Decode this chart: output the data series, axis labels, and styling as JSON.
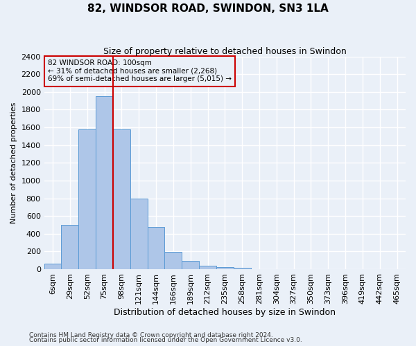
{
  "title": "82, WINDSOR ROAD, SWINDON, SN3 1LA",
  "subtitle": "Size of property relative to detached houses in Swindon",
  "xlabel": "Distribution of detached houses by size in Swindon",
  "ylabel": "Number of detached properties",
  "categories": [
    "6sqm",
    "29sqm",
    "52sqm",
    "75sqm",
    "98sqm",
    "121sqm",
    "144sqm",
    "166sqm",
    "189sqm",
    "212sqm",
    "235sqm",
    "258sqm",
    "281sqm",
    "304sqm",
    "327sqm",
    "350sqm",
    "373sqm",
    "396sqm",
    "419sqm",
    "442sqm",
    "465sqm"
  ],
  "values": [
    60,
    500,
    1580,
    1950,
    1580,
    800,
    480,
    195,
    90,
    35,
    25,
    15,
    0,
    0,
    0,
    0,
    0,
    0,
    0,
    0,
    0
  ],
  "bar_color": "#aec6e8",
  "bar_edge_color": "#5b9bd5",
  "background_color": "#eaf0f8",
  "grid_color": "#ffffff",
  "red_line_index": 4,
  "red_line_color": "#cc0000",
  "annotation_text": "82 WINDSOR ROAD: 100sqm\n← 31% of detached houses are smaller (2,268)\n69% of semi-detached houses are larger (5,015) →",
  "annotation_box_color": "#cc0000",
  "ylim": [
    0,
    2400
  ],
  "yticks": [
    0,
    200,
    400,
    600,
    800,
    1000,
    1200,
    1400,
    1600,
    1800,
    2000,
    2200,
    2400
  ],
  "footnote1": "Contains HM Land Registry data © Crown copyright and database right 2024.",
  "footnote2": "Contains public sector information licensed under the Open Government Licence v3.0."
}
